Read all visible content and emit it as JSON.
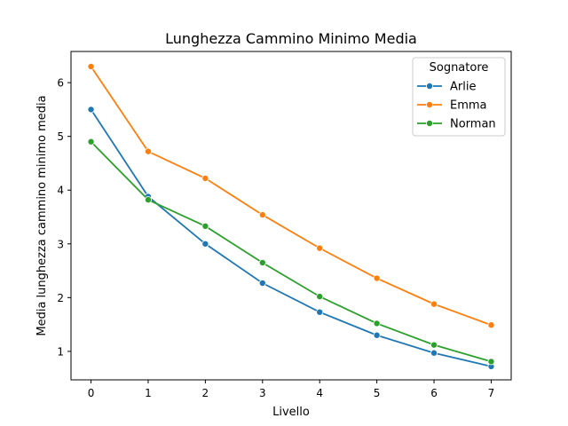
{
  "chart_data": {
    "type": "line",
    "title": "Lunghezza Cammino Minimo Media",
    "xlabel": "Livello",
    "ylabel": "Media lunghezza cammino minimo media",
    "x": [
      0,
      1,
      2,
      3,
      4,
      5,
      6,
      7
    ],
    "xlim": [
      -0.35,
      7.35
    ],
    "ylim": [
      0.47,
      6.58
    ],
    "xticks": [
      "0",
      "1",
      "2",
      "3",
      "4",
      "5",
      "6",
      "7"
    ],
    "yticks": [
      "1",
      "2",
      "3",
      "4",
      "5",
      "6"
    ],
    "legend": {
      "title": "Sognatore",
      "placement": "top-right"
    },
    "series": [
      {
        "name": "Arlie",
        "color": "#1f77b4",
        "values": [
          5.5,
          3.88,
          3.0,
          2.27,
          1.73,
          1.3,
          0.97,
          0.72
        ]
      },
      {
        "name": "Emma",
        "color": "#ff7f0e",
        "values": [
          6.3,
          4.72,
          4.22,
          3.54,
          2.92,
          2.36,
          1.88,
          1.49
        ]
      },
      {
        "name": "Norman",
        "color": "#2ca02c",
        "values": [
          4.9,
          3.82,
          3.33,
          2.65,
          2.02,
          1.52,
          1.12,
          0.81
        ]
      }
    ]
  }
}
